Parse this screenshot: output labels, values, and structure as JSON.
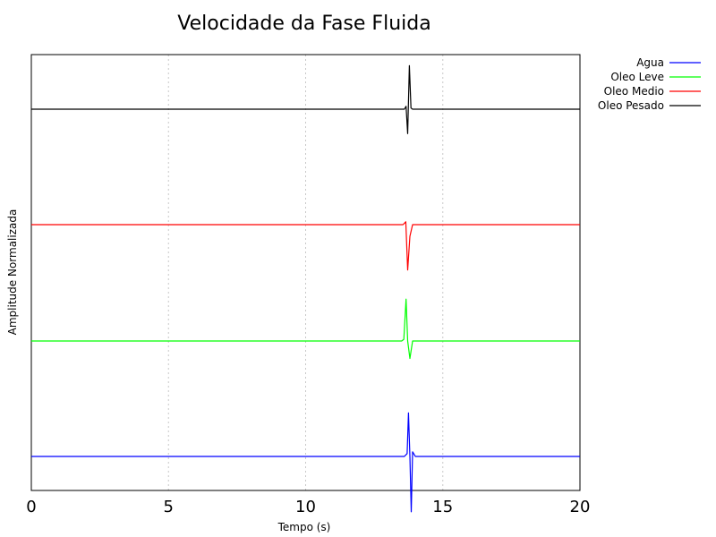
{
  "chart_data": {
    "type": "line",
    "title": "Velocidade da Fase Fluida",
    "xlabel": "Tempo (s)",
    "ylabel": "Amplitude Normalizada",
    "xlim": [
      0,
      20
    ],
    "xticks": [
      0,
      5,
      10,
      15,
      20
    ],
    "x_tick_labels": [
      "0",
      "5",
      "10",
      "15",
      "20"
    ],
    "grid": "vertical",
    "legend_position": "top-right",
    "note": "",
    "series": [
      {
        "name": "Agua",
        "color": "#0000ff",
        "baseline": 0,
        "x": [
          0,
          13.6,
          13.7,
          13.75,
          13.8,
          13.85,
          13.9,
          14.0,
          20
        ],
        "y": [
          0,
          0,
          0.05,
          0.75,
          0.0,
          -0.95,
          0.08,
          0.0,
          0
        ]
      },
      {
        "name": "Oleo Leve",
        "color": "#00ff00",
        "baseline": 0,
        "x": [
          0,
          13.5,
          13.58,
          13.66,
          13.72,
          13.8,
          13.9,
          20
        ],
        "y": [
          0,
          0,
          0.03,
          0.72,
          0.0,
          -0.3,
          0.0,
          0
        ]
      },
      {
        "name": "Oleo Medio",
        "color": "#ff0000",
        "baseline": 0,
        "x": [
          0,
          13.55,
          13.65,
          13.72,
          13.8,
          13.9,
          20
        ],
        "y": [
          0,
          0,
          0.05,
          -0.78,
          -0.2,
          0.0,
          0
        ]
      },
      {
        "name": "Oleo Pesado",
        "color": "#000000",
        "baseline": 0,
        "x": [
          0,
          13.6,
          13.66,
          13.72,
          13.78,
          13.84,
          13.9,
          20
        ],
        "y": [
          0,
          0,
          0.05,
          -0.42,
          0.75,
          0.02,
          0.0,
          0
        ]
      }
    ]
  }
}
